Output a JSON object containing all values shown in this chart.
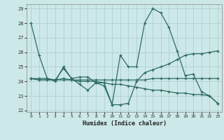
{
  "xlabel": "Humidex (Indice chaleur)",
  "bg_color": "#cde8e8",
  "line_color": "#2d6b60",
  "grid_color": "#a8cccc",
  "xlim": [
    -0.5,
    23.5
  ],
  "ylim": [
    21.9,
    29.3
  ],
  "yticks": [
    22,
    23,
    24,
    25,
    26,
    27,
    28,
    29
  ],
  "xticks": [
    0,
    1,
    2,
    3,
    4,
    5,
    6,
    7,
    8,
    9,
    10,
    11,
    12,
    13,
    14,
    15,
    16,
    17,
    18,
    19,
    20,
    21,
    22,
    23
  ],
  "lines": [
    {
      "y": [
        28.0,
        25.8,
        24.2,
        24.0,
        25.0,
        24.2,
        23.8,
        23.4,
        23.9,
        23.7,
        22.4,
        25.8,
        25.0,
        25.0,
        28.0,
        29.0,
        28.7,
        27.7,
        26.1,
        24.4,
        24.5,
        23.3,
        23.0,
        22.5
      ],
      "x_start": 0
    },
    {
      "y": [
        24.2,
        24.1,
        24.1,
        24.1,
        24.9,
        24.2,
        24.3,
        24.3,
        23.9,
        23.9,
        22.4,
        22.4,
        22.5,
        24.0,
        24.6,
        24.8,
        25.0,
        25.2,
        25.5,
        25.8,
        25.9,
        25.9,
        26.0,
        26.1
      ],
      "x_start": 0
    },
    {
      "y": [
        24.2,
        24.2,
        24.2,
        24.1,
        24.2,
        24.1,
        24.0,
        24.0,
        24.0,
        23.9,
        23.8,
        23.8,
        23.7,
        23.6,
        23.5,
        23.4,
        23.4,
        23.3,
        23.2,
        23.2,
        23.1,
        23.1,
        23.0,
        22.5
      ],
      "x_start": 0
    },
    {
      "y": [
        24.2,
        24.1,
        24.1,
        24.1,
        24.1,
        24.1,
        24.1,
        24.1,
        24.1,
        24.1,
        24.1,
        24.1,
        24.1,
        24.1,
        24.1,
        24.2,
        24.2,
        24.2,
        24.2,
        24.2,
        24.2,
        24.2,
        24.2,
        24.2
      ],
      "x_start": 0
    }
  ]
}
